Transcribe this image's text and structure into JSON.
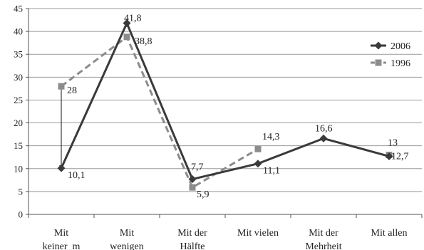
{
  "chart_data": {
    "type": "line",
    "title": "",
    "xlabel": "",
    "ylabel": "",
    "ylim": [
      0,
      45
    ],
    "yticks": [
      0,
      5,
      10,
      15,
      20,
      25,
      30,
      35,
      40,
      45
    ],
    "grid": true,
    "legend_position": "top-right",
    "categories": [
      [
        "Mit",
        "keiner_m"
      ],
      [
        "Mit",
        "wenigen"
      ],
      [
        "Mit der",
        "Hälfte"
      ],
      [
        "Mit vielen"
      ],
      [
        "Mit der",
        "Mehrheit"
      ],
      [
        "Mit allen"
      ]
    ],
    "series": [
      {
        "name": "2006",
        "color": "#3a3a3a",
        "line_style": "solid",
        "marker": "diamond",
        "values": [
          10.1,
          41.8,
          7.7,
          11.1,
          16.6,
          12.7
        ],
        "labels": [
          "10,1",
          "41,8",
          "7,7",
          "11,1",
          "16,6",
          "12,7"
        ]
      },
      {
        "name": "1996",
        "color": "#8c8c8c",
        "line_style": "dashed",
        "marker": "square",
        "values": [
          28,
          38.8,
          5.9,
          14.3,
          null,
          13
        ],
        "labels": [
          "28",
          "38,8",
          "5,9",
          "14,3",
          null,
          "13"
        ]
      }
    ],
    "annotations": [
      {
        "type": "double-arrow",
        "category_index": 0,
        "from": 10.1,
        "to": 28
      }
    ]
  }
}
